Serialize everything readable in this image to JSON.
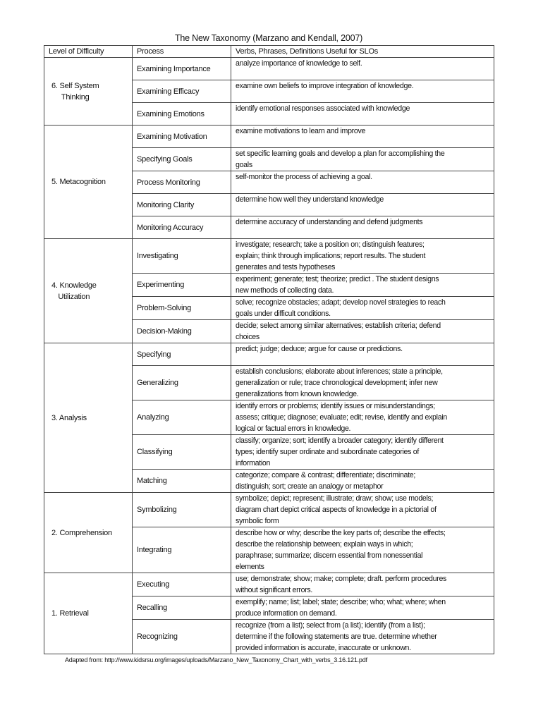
{
  "title": "The New Taxonomy (Marzano and Kendall, 2007)",
  "headers": [
    "Level of Difficulty",
    "Process",
    "Verbs, Phrases, Definitions Useful for SLOs"
  ],
  "levels": [
    {
      "label": "6. Self System\nThinking",
      "rows": [
        {
          "process": "Examining Importance",
          "verbs": "analyze importance of knowledge to self."
        },
        {
          "process": "Examining Efficacy",
          "verbs": "examine own beliefs to improve integration of knowledge."
        },
        {
          "process": "Examining Emotions",
          "verbs": "identify emotional responses associated with knowledge"
        }
      ]
    },
    {
      "label": "5. Metacognition",
      "rows": [
        {
          "process": "Examining Motivation",
          "verbs": "examine motivations to learn and improve"
        },
        {
          "process": "Specifying Goals",
          "verbs": "set specific learning goals and develop a plan for accomplishing the\ngoals"
        },
        {
          "process": "Process Monitoring",
          "verbs": "self-monitor the process of achieving a goal."
        },
        {
          "process": "Monitoring Clarity",
          "verbs": "determine how well they understand knowledge"
        },
        {
          "process": "Monitoring Accuracy",
          "verbs": "determine accuracy of understanding and defend judgments"
        }
      ]
    },
    {
      "label": "4. Knowledge\nUtilization",
      "rows": [
        {
          "process": "Investigating",
          "verbs": "investigate; research; take a position on; distinguish features;\nexplain; think through implications; report results. The student\ngenerates and tests hypotheses"
        },
        {
          "process": "Experimenting",
          "verbs": "experiment; generate; test; theorize; predict . The student designs\nnew methods of collecting data."
        },
        {
          "process": "Problem-Solving",
          "verbs": "solve; recognize obstacles; adapt; develop novel strategies to reach\ngoals under difficult conditions."
        },
        {
          "process": "Decision-Making",
          "verbs": "decide; select among similar alternatives; establish criteria; defend\nchoices"
        }
      ]
    },
    {
      "label": "3. Analysis",
      "rows": [
        {
          "process": "Specifying",
          "verbs": "predict; judge; deduce; argue for cause or predictions."
        },
        {
          "process": "Generalizing",
          "verbs": "establish conclusions; elaborate about inferences; state a principle,\ngeneralization or rule; trace chronological development; infer new\ngeneralizations from known knowledge."
        },
        {
          "process": "Analyzing",
          "verbs": "identify errors or problems; identify issues or misunderstandings;\nassess; critique; diagnose; evaluate; edit; revise, identify and explain\nlogical or factual errors in knowledge."
        },
        {
          "process": "Classifying",
          "verbs": "classify; organize; sort; identify a broader category; identify different\ntypes; identify super ordinate and subordinate categories of\ninformation"
        },
        {
          "process": "Matching",
          "verbs": "categorize; compare & contrast; differentiate; discriminate;\ndistinguish; sort; create an analogy or metaphor"
        }
      ]
    },
    {
      "label": "2. Comprehension",
      "rows": [
        {
          "process": "Symbolizing",
          "verbs": "symbolize; depict; represent; illustrate; draw; show; use models;\ndiagram chart depict critical aspects of knowledge in a pictorial of\nsymbolic form"
        },
        {
          "process": "Integrating",
          "verbs": "describe how or why; describe the key parts of; describe the effects;\ndescribe the relationship between; explain ways in which;\nparaphrase; summarize; discern essential from nonessential\nelements"
        }
      ]
    },
    {
      "label": "1. Retrieval",
      "rows": [
        {
          "process": "Executing",
          "verbs": "use; demonstrate; show; make; complete; draft. perform procedures\nwithout significant errors."
        },
        {
          "process": "Recalling",
          "verbs": "exemplify; name; list; label; state; describe; who; what; where; when\nproduce information on demand."
        },
        {
          "process": "Recognizing",
          "verbs": "recognize (from a list); select from (a list); identify (from a list);\ndetermine if the following statements are true. determine whether\nprovided information is accurate, inaccurate or unknown."
        }
      ]
    }
  ],
  "footer": "Adapted from: http://www.kidsrsu.org/images/uploads/Marzano_New_Taxonomy_Chart_with_verbs_3.16.121.pdf"
}
